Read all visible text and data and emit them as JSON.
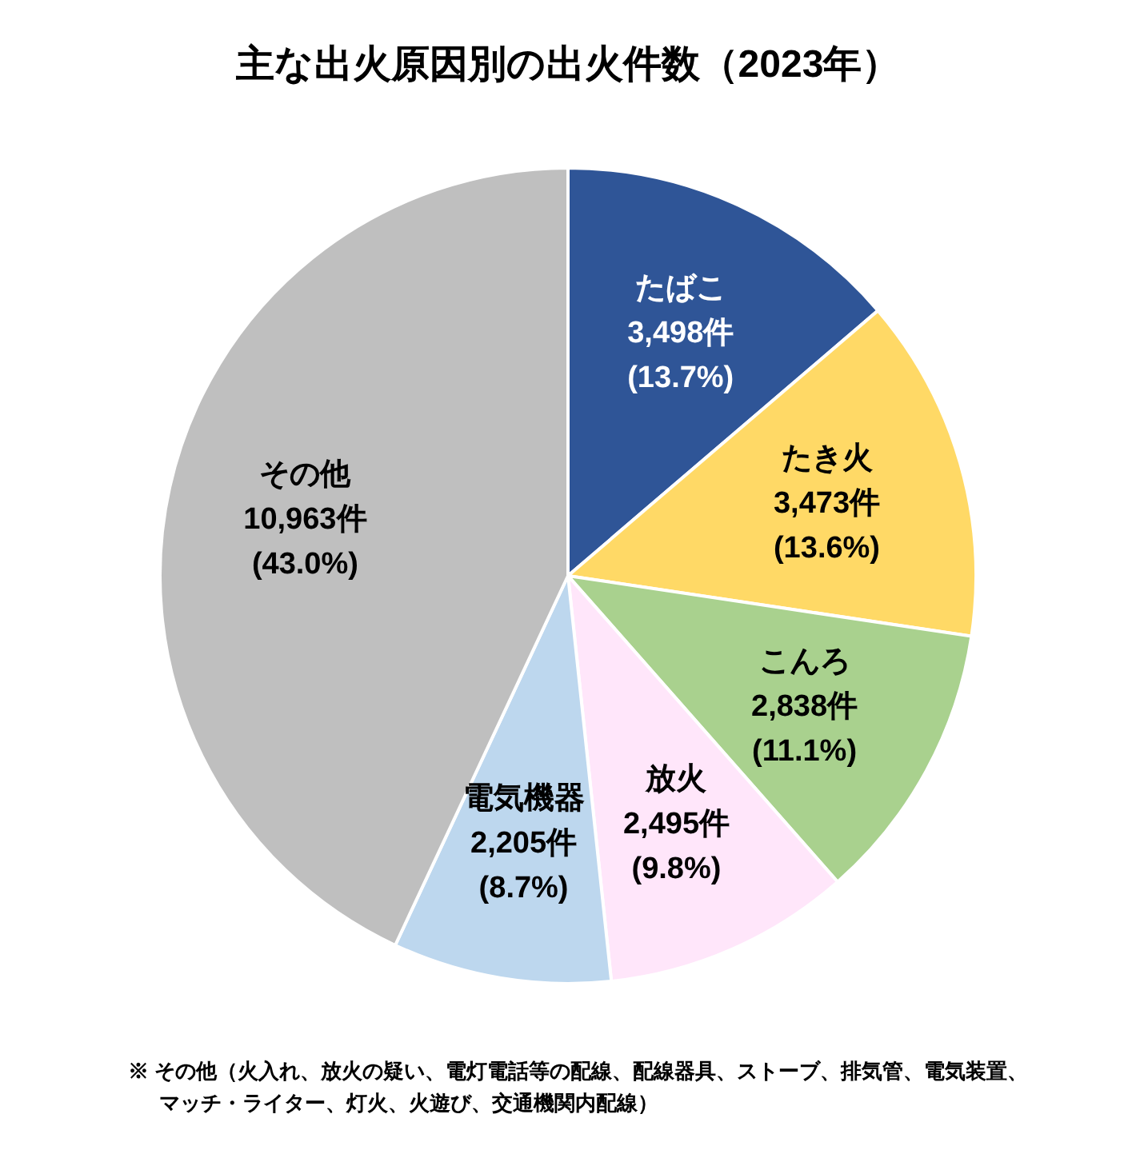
{
  "chart_data": {
    "type": "pie",
    "title": "主な出火原因別の出火件数（2023年）",
    "categories": [
      "たばこ",
      "たき火",
      "こんろ",
      "放火",
      "電気機器",
      "その他"
    ],
    "values": [
      3498,
      3473,
      2838,
      2495,
      2205,
      10963
    ],
    "colors": [
      "#2f5597",
      "#ffd966",
      "#a9d18e",
      "#ffe6fa",
      "#bdd7ee",
      "#bfbfbf"
    ],
    "value_labels": [
      "3,498件(13.7%)",
      "3,473件(13.6%)",
      "2,838件(11.1%)",
      "2,495件(9.8%)",
      "2,205件(8.7%)",
      "10,963件(43.0%)"
    ],
    "annotations": [
      "※ その他（火入れ、放火の疑い、電灯電話等の配線、配線器具、ストーブ、排気管、電気装置、マッチ・ライター、灯火、火遊び、交通機関内配線）"
    ]
  }
}
